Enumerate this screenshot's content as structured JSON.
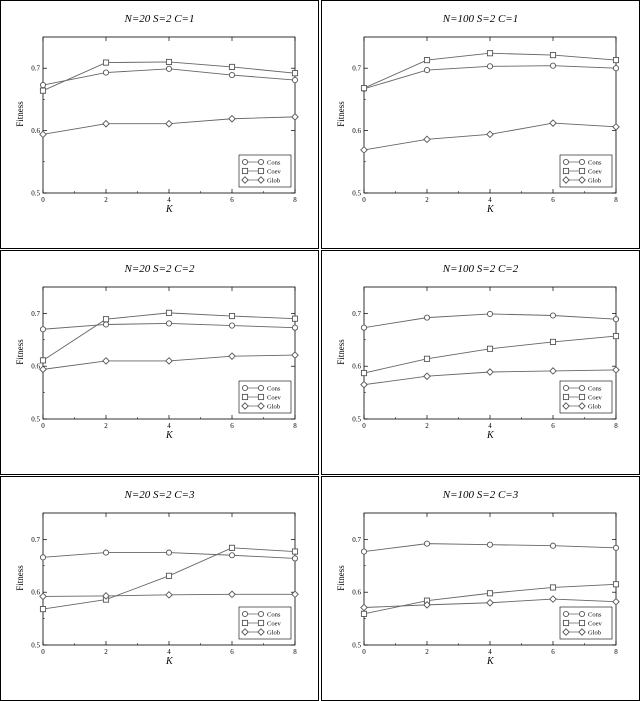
{
  "chart_data": [
    {
      "type": "line",
      "title": "N=20 S=2 C=1",
      "xlabel": "K",
      "ylabel": "Fitness",
      "xlim": [
        0,
        8
      ],
      "ylim": [
        0.5,
        0.75
      ],
      "xticks": [
        "0",
        "2",
        "4",
        "6",
        "8"
      ],
      "yticks": [
        "0.5",
        "0.6",
        "0.7"
      ],
      "legend_position": "bottom-right",
      "x": [
        0,
        2,
        4,
        6,
        8
      ],
      "series": [
        {
          "name": "Cons",
          "marker": "circle",
          "values": [
            0.673,
            0.693,
            0.699,
            0.689,
            0.681
          ]
        },
        {
          "name": "Coev",
          "marker": "square",
          "values": [
            0.664,
            0.709,
            0.71,
            0.702,
            0.692
          ]
        },
        {
          "name": "Glob",
          "marker": "diamond",
          "values": [
            0.594,
            0.611,
            0.611,
            0.619,
            0.622
          ]
        }
      ]
    },
    {
      "type": "line",
      "title": "N=100 S=2 C=1",
      "xlabel": "K",
      "ylabel": "Fitness",
      "xlim": [
        0,
        8
      ],
      "ylim": [
        0.5,
        0.75
      ],
      "xticks": [
        "0",
        "2",
        "4",
        "6",
        "8"
      ],
      "yticks": [
        "0.5",
        "0.6",
        "0.7"
      ],
      "legend_position": "bottom-right",
      "x": [
        0,
        2,
        4,
        6,
        8
      ],
      "series": [
        {
          "name": "Cons",
          "marker": "circle",
          "values": [
            0.667,
            0.697,
            0.703,
            0.704,
            0.7
          ]
        },
        {
          "name": "Coev",
          "marker": "square",
          "values": [
            0.668,
            0.713,
            0.724,
            0.721,
            0.713
          ]
        },
        {
          "name": "Glob",
          "marker": "diamond",
          "values": [
            0.569,
            0.586,
            0.594,
            0.612,
            0.606
          ]
        }
      ]
    },
    {
      "type": "line",
      "title": "N=20 S=2 C=2",
      "xlabel": "K",
      "ylabel": "Fitness",
      "xlim": [
        0,
        8
      ],
      "ylim": [
        0.5,
        0.75
      ],
      "xticks": [
        "0",
        "2",
        "4",
        "6",
        "8"
      ],
      "yticks": [
        "0.5",
        "0.6",
        "0.7"
      ],
      "legend_position": "bottom-right",
      "x": [
        0,
        2,
        4,
        6,
        8
      ],
      "series": [
        {
          "name": "Cons",
          "marker": "circle",
          "values": [
            0.67,
            0.679,
            0.681,
            0.677,
            0.673
          ]
        },
        {
          "name": "Coev",
          "marker": "square",
          "values": [
            0.611,
            0.689,
            0.701,
            0.695,
            0.69
          ]
        },
        {
          "name": "Glob",
          "marker": "diamond",
          "values": [
            0.594,
            0.61,
            0.61,
            0.619,
            0.621
          ]
        }
      ]
    },
    {
      "type": "line",
      "title": "N=100 S=2 C=2",
      "xlabel": "K",
      "ylabel": "Fitness",
      "xlim": [
        0,
        8
      ],
      "ylim": [
        0.5,
        0.75
      ],
      "xticks": [
        "0",
        "2",
        "4",
        "6",
        "8"
      ],
      "yticks": [
        "0.5",
        "0.6",
        "0.7"
      ],
      "legend_position": "bottom-right",
      "x": [
        0,
        2,
        4,
        6,
        8
      ],
      "series": [
        {
          "name": "Cons",
          "marker": "circle",
          "values": [
            0.673,
            0.692,
            0.699,
            0.696,
            0.689
          ]
        },
        {
          "name": "Coev",
          "marker": "square",
          "values": [
            0.587,
            0.614,
            0.633,
            0.646,
            0.657
          ]
        },
        {
          "name": "Glob",
          "marker": "diamond",
          "values": [
            0.565,
            0.581,
            0.589,
            0.591,
            0.593
          ]
        }
      ]
    },
    {
      "type": "line",
      "title": "N=20 S=2 C=3",
      "xlabel": "K",
      "ylabel": "Fitness",
      "xlim": [
        0,
        8
      ],
      "ylim": [
        0.5,
        0.75
      ],
      "xticks": [
        "0",
        "2",
        "4",
        "6",
        "8"
      ],
      "yticks": [
        "0.5",
        "0.6",
        "0.7"
      ],
      "legend_position": "bottom-right",
      "x": [
        0,
        2,
        4,
        6,
        8
      ],
      "series": [
        {
          "name": "Cons",
          "marker": "circle",
          "values": [
            0.666,
            0.675,
            0.675,
            0.67,
            0.664
          ]
        },
        {
          "name": "Coev",
          "marker": "square",
          "values": [
            0.568,
            0.586,
            0.631,
            0.684,
            0.677
          ]
        },
        {
          "name": "Glob",
          "marker": "diamond",
          "values": [
            0.592,
            0.593,
            0.595,
            0.596,
            0.596
          ]
        }
      ]
    },
    {
      "type": "line",
      "title": "N=100 S=2 C=3",
      "xlabel": "K",
      "ylabel": "Fitness",
      "xlim": [
        0,
        8
      ],
      "ylim": [
        0.5,
        0.75
      ],
      "xticks": [
        "0",
        "2",
        "4",
        "6",
        "8"
      ],
      "yticks": [
        "0.5",
        "0.6",
        "0.7"
      ],
      "legend_position": "bottom-right",
      "x": [
        0,
        2,
        4,
        6,
        8
      ],
      "series": [
        {
          "name": "Cons",
          "marker": "circle",
          "values": [
            0.677,
            0.692,
            0.69,
            0.688,
            0.684
          ]
        },
        {
          "name": "Coev",
          "marker": "square",
          "values": [
            0.559,
            0.584,
            0.598,
            0.609,
            0.615
          ]
        },
        {
          "name": "Glob",
          "marker": "diamond",
          "values": [
            0.571,
            0.576,
            0.58,
            0.587,
            0.582
          ]
        }
      ]
    }
  ]
}
